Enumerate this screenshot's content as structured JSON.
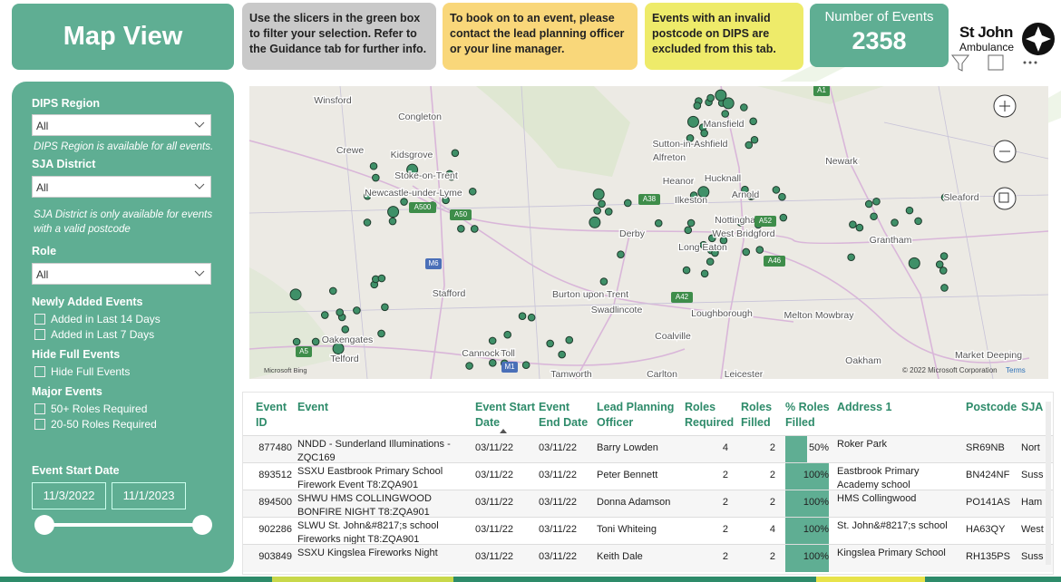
{
  "header": {
    "title": "Map View",
    "notes": [
      "Use the slicers in the green box to filter your selection. Refer to the Guidance tab for further info.",
      "To book on to an event, please contact the lead planning officer or your line manager.",
      "Events with an invalid postcode on DIPS are excluded from this tab."
    ],
    "kpi": {
      "label": "Number of Events",
      "value": "2358"
    },
    "logo": [
      "St John",
      "Ambulance"
    ]
  },
  "slicers": {
    "region": {
      "label": "DIPS Region",
      "value": "All",
      "note": "DIPS Region is available for all events."
    },
    "district": {
      "label": "SJA District",
      "value": "All",
      "note": "SJA District is only available for events with a valid postcode"
    },
    "role": {
      "label": "Role",
      "value": "All"
    },
    "groups": [
      {
        "label": "Newly Added Events",
        "options": [
          "Added in Last 14 Days",
          "Added in Last 7 Days"
        ]
      },
      {
        "label": "Hide Full Events",
        "options": [
          "Hide Full Events"
        ]
      },
      {
        "label": "Major Events",
        "options": [
          "50+ Roles Required",
          "20-50 Roles Required"
        ]
      }
    ],
    "date": {
      "label": "Event Start Date",
      "from": "11/3/2022",
      "to": "11/1/2023"
    }
  },
  "map": {
    "places": [
      "Winsford",
      "Congleton",
      "Kidsgrove",
      "Crewe",
      "Stoke-on-Trent",
      "Newcastle-under-Lyme",
      "Stafford",
      "Oakengates",
      "Telford",
      "Cannock",
      "Toll",
      "Tamworth",
      "Mansfield",
      "Sutton-in-Ashfield",
      "Alfreton",
      "Heanor",
      "Hucknall",
      "Arnold",
      "Ilkeston",
      "Nottingham",
      "West Bridgford",
      "Long Eaton",
      "Derby",
      "Burton upon Trent",
      "Swadlincote",
      "Loughborough",
      "Coalville",
      "Melton Mowbray",
      "Carlton",
      "Leicester",
      "Newark",
      "Sleaford",
      "Grantham",
      "Oakham",
      "Market Deeping"
    ],
    "roads": [
      "A500",
      "A50",
      "A38",
      "M6",
      "A52",
      "A46",
      "A42",
      "A1",
      "A5",
      "M1"
    ],
    "attribution": "© 2022 Microsoft Corporation",
    "terms": "Terms",
    "brand": "Microsoft Bing"
  },
  "table": {
    "columns": [
      "Event ID",
      "Event",
      "Event Start Date",
      "Event End Date",
      "Lead Planning Officer",
      "Roles Required",
      "Roles Filled",
      "% Roles Filled",
      "Address 1",
      "Postcode",
      "SJA"
    ],
    "rows": [
      [
        "877480",
        "NNDD - Sunderland Illuminations - ZQC169",
        "03/11/22",
        "03/11/22",
        "Barry Lowden",
        "4",
        "2",
        "50%",
        "Roker Park",
        "SR69NB",
        "Nort"
      ],
      [
        "893512",
        "SSXU Eastbrook Primary School Firework Event T8:ZQA901",
        "03/11/22",
        "03/11/22",
        "Peter Bennett",
        "2",
        "2",
        "100%",
        "Eastbrook Primary Academy school",
        "BN424NF",
        "Suss"
      ],
      [
        "894500",
        "SHWU HMS COLLINGWOOD BONFIRE NIGHT T8:ZQA901",
        "03/11/22",
        "03/11/22",
        "Donna Adamson",
        "2",
        "2",
        "100%",
        "HMS Collingwood",
        "PO141AS",
        "Ham"
      ],
      [
        "902286",
        "SLWU St. John&#8217;s school Fireworks night T8:ZQA901",
        "03/11/22",
        "03/11/22",
        "Toni Whiteing",
        "2",
        "4",
        "100%",
        "St. John&#8217;s school",
        "HA63QY",
        "West"
      ],
      [
        "903849",
        "SSXU Kingslea Fireworks Night",
        "03/11/22",
        "03/11/22",
        "Keith Dale",
        "2",
        "2",
        "100%",
        "Kingslea Primary School",
        "RH135PS",
        "Suss"
      ]
    ]
  }
}
